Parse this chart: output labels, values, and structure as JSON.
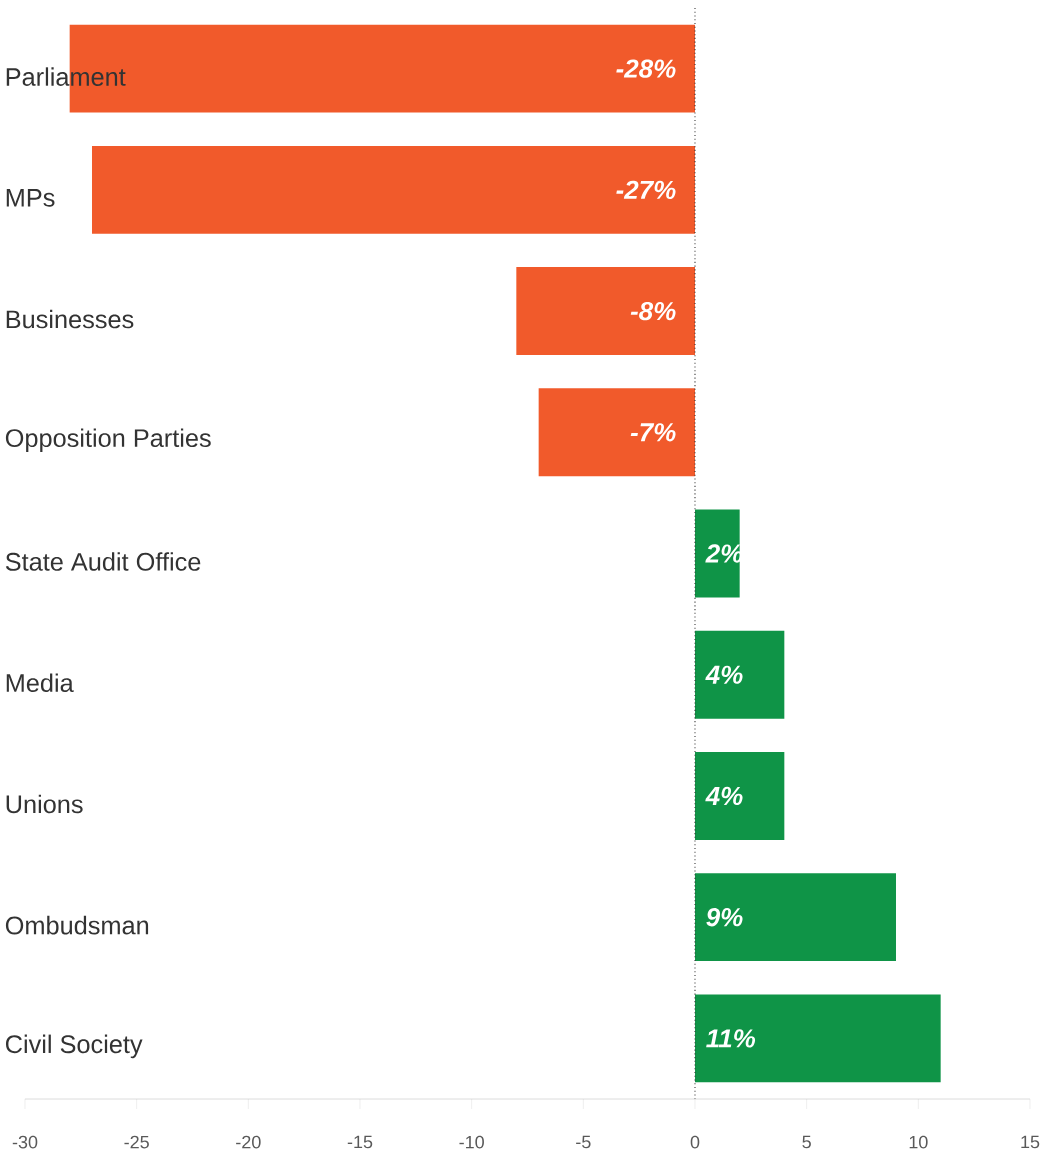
{
  "chart_data": {
    "type": "bar",
    "orientation": "horizontal",
    "categories": [
      "Parliament",
      "MPs",
      "Businesses",
      "Opposition Parties",
      "State Audit Office",
      "Media",
      "Unions",
      "Ombudsman",
      "Civil Society"
    ],
    "values": [
      -28,
      -27,
      -8,
      -7,
      2,
      4,
      4,
      9,
      11
    ],
    "colors": [
      "#f15a2b",
      "#f15a2b",
      "#f15a2b",
      "#f15a2b",
      "#0f9447",
      "#0f9447",
      "#0f9447",
      "#0f9447",
      "#0f9447"
    ],
    "value_labels": [
      "-28%",
      "-27%",
      "-8%",
      "-7%",
      "2%",
      "4%",
      "4%",
      "9%",
      "11%"
    ],
    "xlim": [
      -30,
      15
    ],
    "xticks": [
      -30,
      -25,
      -20,
      -15,
      -10,
      -5,
      0,
      5,
      10,
      15
    ],
    "ref_lines": [
      {
        "axis": "x",
        "value": 0,
        "line_style": "dotted",
        "color": "#333333"
      }
    ],
    "grid": false
  }
}
